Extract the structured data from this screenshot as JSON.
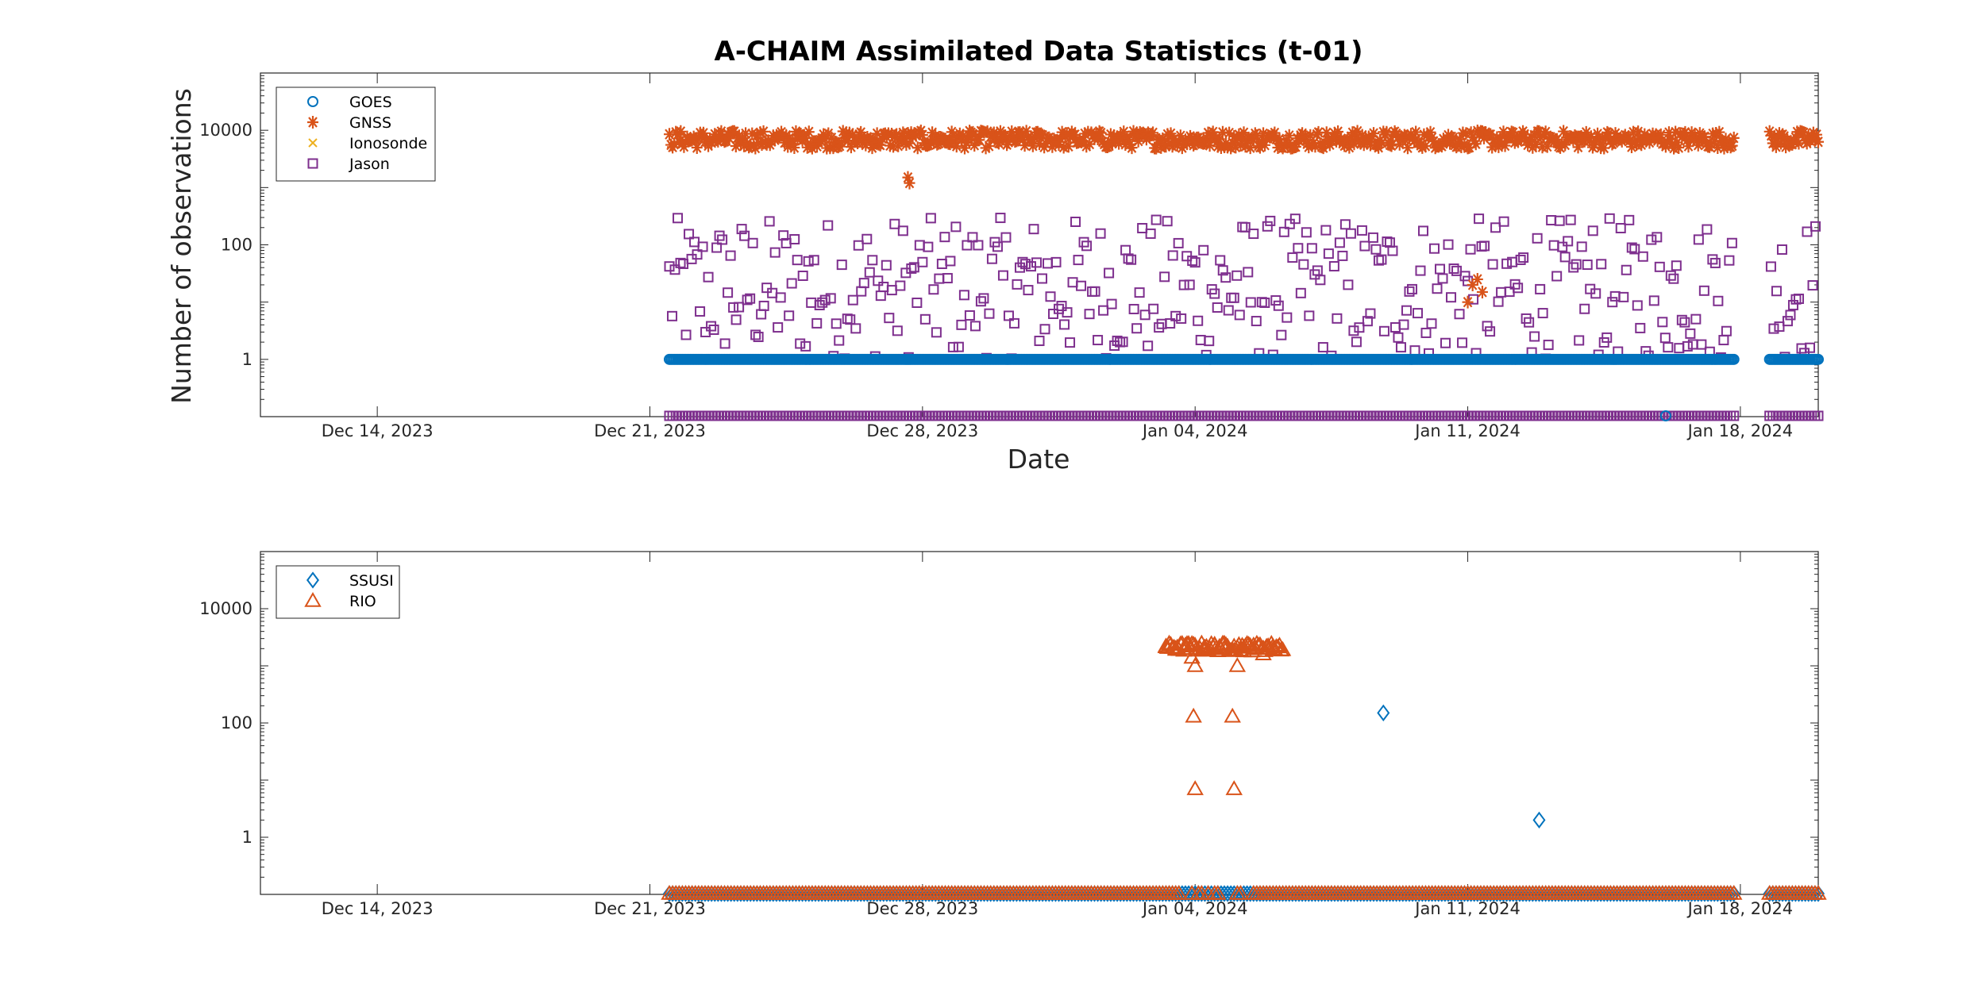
{
  "chart_data": [
    {
      "type": "scatter",
      "title": "A-CHAIM Assimilated Data Statistics (t-01)",
      "xlabel": "Date",
      "ylabel": "Number of observations",
      "yscale": "log",
      "ylim": [
        0.1,
        100000
      ],
      "yticks": [
        1,
        100,
        10000
      ],
      "ytick_labels": [
        "1",
        "100",
        "10000"
      ],
      "xlim": [
        "2023-12-11",
        "2024-01-20"
      ],
      "xticks": [
        "2023-12-14",
        "2023-12-21",
        "2023-12-28",
        "2024-01-04",
        "2024-01-11",
        "2024-01-18"
      ],
      "xtick_labels": [
        "Dec 14, 2023",
        "Dec 21, 2023",
        "Dec 28, 2023",
        "Jan 04, 2024",
        "Jan 11, 2024",
        "Jan 18, 2024"
      ],
      "legend_position": "top-left",
      "grid": false,
      "data_start": "2023-12-21T12:00",
      "data_end": "2024-01-20",
      "gap": [
        "2024-01-17T20:00",
        "2024-01-18T18:00"
      ],
      "series": [
        {
          "name": "GOES",
          "marker": "circle",
          "color": "#0072BD",
          "typical_value": 1,
          "zero_points": [
            "2024-01-16T02:00"
          ]
        },
        {
          "name": "GNSS",
          "marker": "asterisk",
          "color": "#D95319",
          "typical_value": 8000,
          "range": [
            3000,
            12000
          ],
          "dip_points": [
            {
              "x": "2023-12-27T15:00",
              "y": 1500
            },
            {
              "x": "2023-12-27T16:00",
              "y": 1200
            },
            {
              "x": "2024-01-11T00:00",
              "y": 10
            },
            {
              "x": "2024-01-11T03:00",
              "y": 20
            },
            {
              "x": "2024-01-11T06:00",
              "y": 25
            },
            {
              "x": "2024-01-11T09:00",
              "y": 15
            }
          ]
        },
        {
          "name": "Ionosonde",
          "marker": "x",
          "color": "#EDB120",
          "typical_value": null
        },
        {
          "name": "Jason",
          "marker": "square",
          "color": "#7E2F8E",
          "range": [
            1,
            300
          ],
          "baseline": "zero"
        }
      ]
    },
    {
      "type": "scatter",
      "yscale": "log",
      "ylim": [
        0.1,
        100000
      ],
      "yticks": [
        1,
        100,
        10000
      ],
      "ytick_labels": [
        "1",
        "100",
        "10000"
      ],
      "xlim": [
        "2023-12-11",
        "2024-01-20"
      ],
      "xticks": [
        "2023-12-14",
        "2023-12-21",
        "2023-12-28",
        "2024-01-04",
        "2024-01-11",
        "2024-01-18"
      ],
      "xtick_labels": [
        "Dec 14, 2023",
        "Dec 21, 2023",
        "Dec 28, 2023",
        "Jan 04, 2024",
        "Jan 11, 2024",
        "Jan 18, 2024"
      ],
      "legend_position": "top-left",
      "grid": false,
      "series": [
        {
          "name": "SSUSI",
          "marker": "diamond",
          "color": "#0072BD",
          "points": [
            {
              "x": "2024-01-08T20:00",
              "y": 150
            },
            {
              "x": "2024-01-12T20:00",
              "y": 2
            }
          ],
          "zero_range": [
            "2024-01-03T15:00",
            "2024-01-05T12:00"
          ]
        },
        {
          "name": "RIO",
          "marker": "triangle",
          "color": "#D95319",
          "points": [
            {
              "x": "2024-01-03T06:00",
              "y": 2200
            },
            {
              "x": "2024-01-03T12:00",
              "y": 2000
            },
            {
              "x": "2024-01-03T18:00",
              "y": 2300
            },
            {
              "x": "2024-01-03T22:00",
              "y": 1400
            },
            {
              "x": "2024-01-04T00:00",
              "y": 1000
            },
            {
              "x": "2024-01-04T06:00",
              "y": 2100
            },
            {
              "x": "2024-01-04T12:00",
              "y": 2300
            },
            {
              "x": "2024-01-04T18:00",
              "y": 2000
            },
            {
              "x": "2024-01-05T00:00",
              "y": 2200
            },
            {
              "x": "2024-01-05T02:00",
              "y": 1000
            },
            {
              "x": "2024-01-05T06:00",
              "y": 2100
            },
            {
              "x": "2024-01-05T12:00",
              "y": 2300
            },
            {
              "x": "2024-01-05T18:00",
              "y": 1600
            },
            {
              "x": "2024-01-06T00:00",
              "y": 2200
            },
            {
              "x": "2024-01-03T23:00",
              "y": 130
            },
            {
              "x": "2024-01-04T00:00",
              "y": 7
            },
            {
              "x": "2024-01-04T23:00",
              "y": 130
            },
            {
              "x": "2024-01-05T00:00",
              "y": 7
            }
          ],
          "zero_range": [
            "2023-12-21T12:00",
            "2024-01-20T00:00"
          ],
          "gap": [
            "2024-01-17T20:00",
            "2024-01-18T18:00"
          ]
        }
      ]
    }
  ]
}
